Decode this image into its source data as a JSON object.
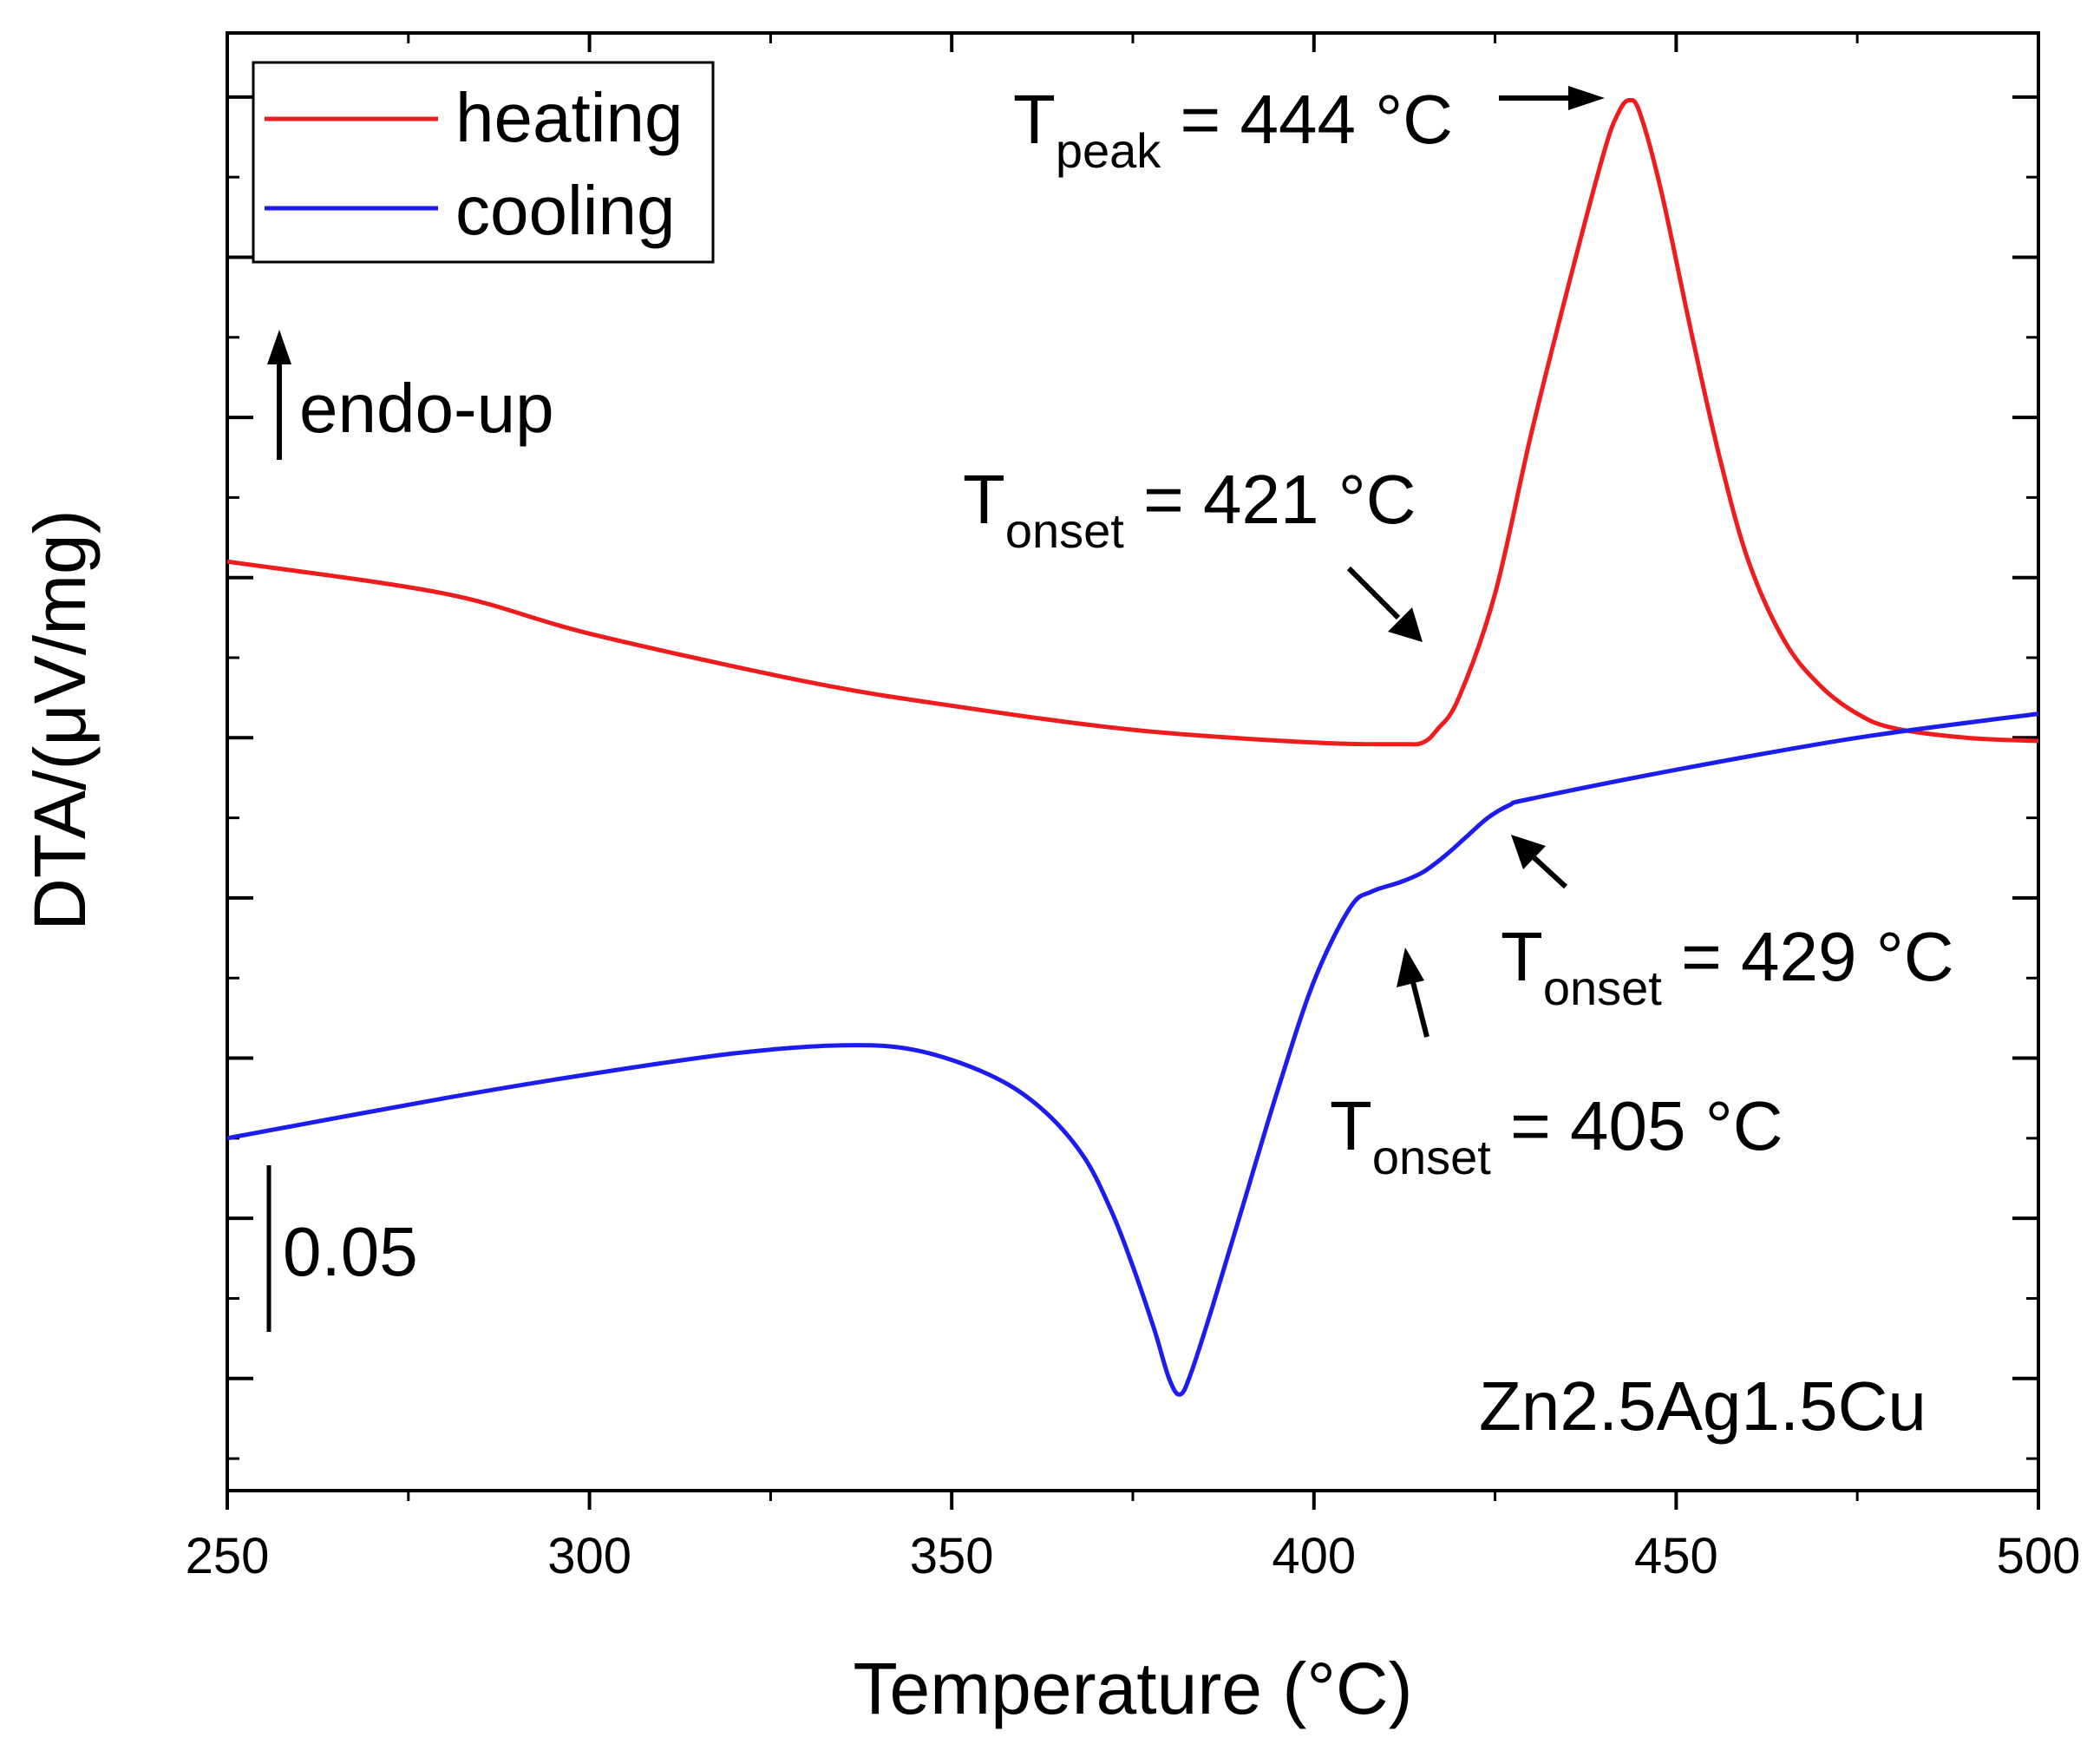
{
  "chart_data": {
    "type": "line",
    "title": "",
    "xlabel": "Temperature (°C)",
    "ylabel": "DTA/(μV/mg)",
    "xlim": [
      250,
      500
    ],
    "ylim": [
      -0.27,
      0.64
    ],
    "x_ticks": [
      250,
      300,
      350,
      400,
      450,
      500
    ],
    "x_tick_labels": [
      "250",
      "300",
      "350",
      "400",
      "450",
      "500"
    ],
    "y_tick_labels_shown": false,
    "grid": false,
    "legend": {
      "position": "top-left",
      "entries": [
        "heating",
        "cooling"
      ]
    },
    "series": [
      {
        "name": "heating",
        "color": "#ee1c1c",
        "x": [
          250,
          280,
          300,
          330,
          350,
          375,
          400,
          412,
          415,
          417,
          420,
          425,
          430,
          435,
          440,
          442,
          443.5,
          445,
          448,
          452,
          456,
          460,
          465,
          470,
          475,
          480,
          490,
          500
        ],
        "y": [
          0.31,
          0.29,
          0.265,
          0.235,
          0.22,
          0.205,
          0.197,
          0.196,
          0.197,
          0.205,
          0.225,
          0.29,
          0.39,
          0.48,
          0.565,
          0.59,
          0.598,
          0.59,
          0.54,
          0.455,
          0.375,
          0.31,
          0.26,
          0.232,
          0.215,
          0.206,
          0.2,
          0.198
        ]
      },
      {
        "name": "cooling",
        "color": "#1c1cee",
        "x": [
          250,
          280,
          300,
          320,
          335,
          345,
          355,
          362,
          368,
          372,
          375,
          378,
          380,
          381.5,
          383,
          386,
          390,
          395,
          400,
          405,
          408,
          412,
          415,
          418,
          421,
          424,
          427,
          430,
          450,
          475,
          500
        ],
        "y": [
          -0.05,
          -0.025,
          -0.01,
          0.003,
          0.008,
          0.005,
          -0.01,
          -0.03,
          -0.06,
          -0.095,
          -0.13,
          -0.17,
          -0.2,
          -0.21,
          -0.197,
          -0.155,
          -0.095,
          -0.02,
          0.048,
          0.094,
          0.104,
          0.11,
          0.116,
          0.126,
          0.138,
          0.15,
          0.158,
          0.162,
          0.18,
          0.2,
          0.215
        ]
      }
    ],
    "annotations": [
      {
        "main": "T",
        "sub": "peak",
        "rest": " = 444 °C",
        "value": 444,
        "series": "heating"
      },
      {
        "main": "T",
        "sub": "onset",
        "rest": " = 421 °C",
        "value": 421,
        "series": "heating"
      },
      {
        "main": "T",
        "sub": "onset",
        "rest": " = 429 °C",
        "value": 429,
        "series": "cooling"
      },
      {
        "main": "T",
        "sub": "onset",
        "rest": " = 405 °C",
        "value": 405,
        "series": "cooling"
      }
    ],
    "endo_label": "endo-up",
    "scale_bar": {
      "label": "0.05",
      "value": 0.05
    },
    "sample_label": "Zn2.5Ag1.5Cu"
  }
}
